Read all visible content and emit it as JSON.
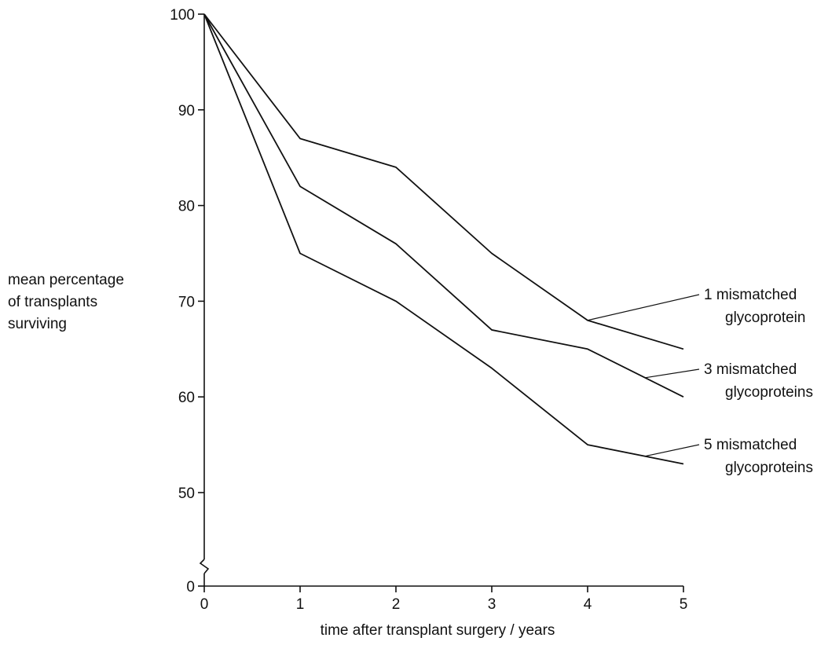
{
  "chart_data": {
    "type": "line",
    "title": "",
    "xlabel": "time after transplant surgery / years",
    "ylabel_lines": [
      "mean percentage",
      "of transplants",
      "surviving"
    ],
    "x": [
      0,
      1,
      2,
      3,
      4,
      5
    ],
    "x_ticks": [
      "0",
      "1",
      "2",
      "3",
      "4",
      "5"
    ],
    "y_ticks": [
      "0",
      "50",
      "60",
      "70",
      "80",
      "90",
      "100"
    ],
    "ylim": [
      50,
      100
    ],
    "y_axis_break": true,
    "grid": false,
    "legend": "direct labels on right",
    "series": [
      {
        "name": "1 mismatched glycoprotein",
        "label_lines": [
          "1  mismatched",
          "glycoprotein"
        ],
        "values": [
          100,
          87,
          84,
          75,
          68,
          65
        ]
      },
      {
        "name": "3 mismatched glycoproteins",
        "label_lines": [
          "3  mismatched",
          "glycoproteins"
        ],
        "values": [
          100,
          82,
          76,
          67,
          65,
          60
        ]
      },
      {
        "name": "5 mismatched glycoproteins",
        "label_lines": [
          "5  mismatched",
          "glycoproteins"
        ],
        "values": [
          100,
          75,
          70,
          63,
          55,
          53
        ]
      }
    ]
  }
}
